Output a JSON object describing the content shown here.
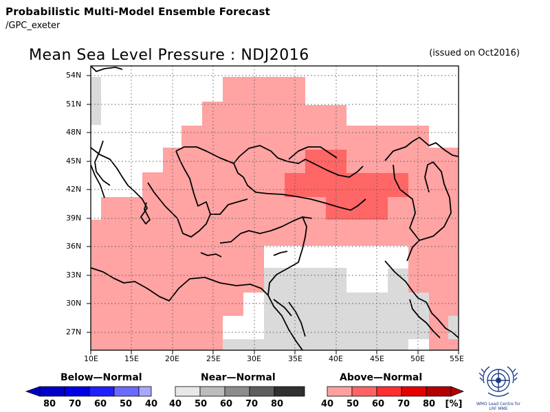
{
  "header": {
    "title": "Probabilistic Multi-Model Ensemble Forecast",
    "subtitle": "/GPC_exeter"
  },
  "map": {
    "title": "Mean Sea Level Pressure : NDJ2016",
    "issued": "(issued on Oct2016)",
    "lat_labels": [
      "54N",
      "51N",
      "48N",
      "45N",
      "42N",
      "39N",
      "36N",
      "33N",
      "30N",
      "27N"
    ],
    "lon_labels": [
      "10E",
      "15E",
      "20E",
      "25E",
      "30E",
      "35E",
      "40E",
      "45E",
      "50E",
      "55E"
    ],
    "colors": {
      "above_40": "#ffa3a3",
      "above_50": "#ff6666",
      "near": "#dadada",
      "land_none": "#ffffff",
      "coast": "#000000"
    }
  },
  "legend": {
    "below": {
      "label": "Below—Normal",
      "ticks": [
        "80",
        "70",
        "60",
        "50",
        "40"
      ],
      "colors": [
        "#0000c8",
        "#0000e6",
        "#2020ff",
        "#6a6aff",
        "#a8a8ff"
      ]
    },
    "near": {
      "label": "Near—Normal",
      "ticks": [
        "40",
        "50",
        "60",
        "70",
        "80"
      ],
      "colors": [
        "#e8e8e8",
        "#bcbcbc",
        "#8c8c8c",
        "#5e5e5e",
        "#303030"
      ]
    },
    "above": {
      "label": "Above—Normal",
      "ticks": [
        "40",
        "50",
        "60",
        "70",
        "80"
      ],
      "unit": "[%]",
      "colors": [
        "#ffa0a0",
        "#ff6464",
        "#ff3030",
        "#e60000",
        "#b40000"
      ]
    }
  },
  "logo": {
    "text": "WMO Lead Centre for LRF MME"
  }
}
